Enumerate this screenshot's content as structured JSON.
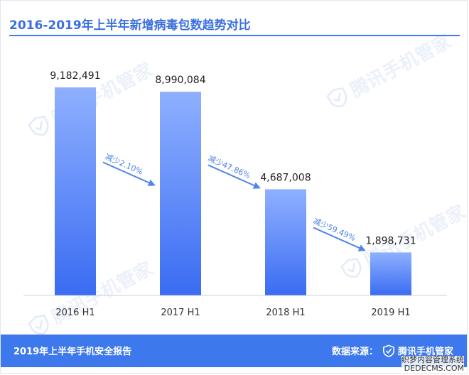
{
  "title": "2016-2019年上半年新增病毒包数趋势对比",
  "footer": {
    "left_text": "2019年上半年手机安全报告",
    "source_label": "数据来源：",
    "source_brand": "腾讯手机管家"
  },
  "watermark_text": "腾讯手机管家",
  "site_mark": {
    "line1": "织梦内容管理系统",
    "line2": "DEDECMS.COM"
  },
  "colors": {
    "bar_top": "#8fb0ff",
    "bar_bottom": "#3a6cf2",
    "title": "#3a6fe0",
    "footer_bg": "#3d78ec",
    "arrow": "#4f86ee"
  },
  "chart_data": {
    "type": "bar",
    "categories": [
      "2016 H1",
      "2017 H1",
      "2018 H1",
      "2019 H1"
    ],
    "values": [
      9182491,
      8990084,
      4687008,
      1898731
    ],
    "value_labels": [
      "9,182,491",
      "8,990,084",
      "4,687,008",
      "1,898,731"
    ],
    "ylim": [
      0,
      10500000
    ],
    "changes": [
      "减少2.10%",
      "减少47.86%",
      "减少59.49%"
    ],
    "title": "2016-2019年上半年新增病毒包数趋势对比",
    "xlabel": "",
    "ylabel": "",
    "grid": false
  }
}
